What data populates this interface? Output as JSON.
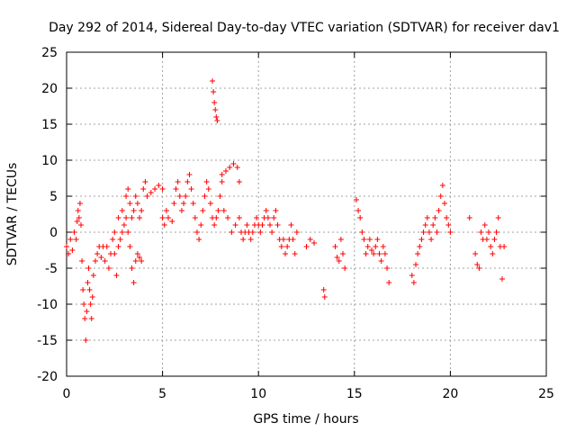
{
  "chart_data": {
    "type": "scatter",
    "title": "Day 292 of 2014, Sidereal Day-to-day VTEC variation (SDTVAR) for receiver dav1",
    "xlabel": "GPS time / hours",
    "ylabel": "SDTVAR / TECUs",
    "xlim": [
      0,
      25
    ],
    "ylim": [
      -20,
      25
    ],
    "xticks": [
      0,
      5,
      10,
      15,
      20,
      25
    ],
    "yticks": [
      -20,
      -15,
      -10,
      -5,
      0,
      5,
      10,
      15,
      20,
      25
    ],
    "grid": true,
    "marker": "+",
    "color": "#ff0000",
    "segments": [
      [
        [
          0.0,
          -2.0
        ],
        [
          0.1,
          -3.0
        ],
        [
          0.2,
          -1.0
        ],
        [
          0.3,
          -2.5
        ],
        [
          0.4,
          0.0
        ],
        [
          0.5,
          -1.0
        ],
        [
          0.55,
          1.5
        ],
        [
          0.6,
          3.0
        ],
        [
          0.65,
          2.0
        ],
        [
          0.7,
          4.0
        ],
        [
          0.75,
          1.0
        ],
        [
          0.8,
          -4.0
        ],
        [
          0.85,
          -8.0
        ],
        [
          0.9,
          -10.0
        ],
        [
          0.95,
          -12.0
        ],
        [
          1.0,
          -15.0
        ],
        [
          1.05,
          -11.0
        ],
        [
          1.1,
          -7.0
        ],
        [
          1.15,
          -5.0
        ],
        [
          1.2,
          -8.0
        ],
        [
          1.25,
          -10.0
        ],
        [
          1.3,
          -12.0
        ],
        [
          1.35,
          -9.0
        ],
        [
          1.4,
          -6.0
        ],
        [
          1.5,
          -4.0
        ],
        [
          1.6,
          -3.0
        ],
        [
          1.7,
          -2.0
        ],
        [
          1.8,
          -3.5
        ],
        [
          1.9,
          -2.0
        ],
        [
          2.0,
          -4.0
        ],
        [
          2.1,
          -2.0
        ],
        [
          2.2,
          -5.0
        ],
        [
          2.3,
          -3.0
        ],
        [
          2.4,
          -1.0
        ],
        [
          2.5,
          -3.0
        ],
        [
          2.6,
          -6.0
        ],
        [
          2.7,
          -2.0
        ],
        [
          2.8,
          -1.0
        ],
        [
          2.9,
          0.0
        ],
        [
          3.0,
          1.0
        ],
        [
          3.1,
          2.0
        ],
        [
          3.2,
          0.0
        ],
        [
          3.3,
          -2.0
        ],
        [
          3.4,
          -5.0
        ],
        [
          3.5,
          -7.0
        ],
        [
          3.6,
          -4.0
        ],
        [
          3.7,
          -3.0
        ],
        [
          3.8,
          -3.5
        ],
        [
          3.9,
          -4.0
        ]
      ],
      [
        [
          2.5,
          0.0
        ],
        [
          2.7,
          2.0
        ],
        [
          2.9,
          3.0
        ],
        [
          3.1,
          5.0
        ],
        [
          3.2,
          6.0
        ],
        [
          3.3,
          4.0
        ],
        [
          3.4,
          2.0
        ],
        [
          3.5,
          3.0
        ],
        [
          3.6,
          5.0
        ],
        [
          3.7,
          4.0
        ],
        [
          3.8,
          2.0
        ],
        [
          3.9,
          3.0
        ],
        [
          4.0,
          6.0
        ],
        [
          4.1,
          7.0
        ],
        [
          4.2,
          5.0
        ],
        [
          4.4,
          5.5
        ],
        [
          4.6,
          6.0
        ],
        [
          4.8,
          6.5
        ],
        [
          5.0,
          6.0
        ]
      ],
      [
        [
          5.0,
          2.0
        ],
        [
          5.1,
          1.0
        ],
        [
          5.2,
          3.0
        ],
        [
          5.3,
          2.0
        ],
        [
          5.5,
          1.5
        ],
        [
          5.6,
          4.0
        ],
        [
          5.7,
          6.0
        ],
        [
          5.8,
          7.0
        ],
        [
          5.9,
          5.0
        ],
        [
          6.0,
          3.0
        ],
        [
          6.1,
          4.0
        ],
        [
          6.2,
          5.0
        ],
        [
          6.3,
          7.0
        ],
        [
          6.4,
          8.0
        ],
        [
          6.5,
          6.0
        ],
        [
          6.6,
          4.0
        ],
        [
          6.7,
          2.0
        ],
        [
          6.8,
          0.0
        ],
        [
          6.9,
          -1.0
        ],
        [
          7.0,
          1.0
        ],
        [
          7.1,
          3.0
        ],
        [
          7.2,
          5.0
        ],
        [
          7.3,
          7.0
        ],
        [
          7.4,
          6.0
        ],
        [
          7.5,
          4.0
        ],
        [
          7.6,
          2.0
        ],
        [
          7.7,
          1.0
        ],
        [
          7.8,
          2.0
        ],
        [
          7.9,
          3.0
        ],
        [
          8.0,
          5.0
        ],
        [
          8.1,
          7.0
        ]
      ],
      [
        [
          7.6,
          21.0
        ],
        [
          7.65,
          19.5
        ],
        [
          7.7,
          18.0
        ],
        [
          7.75,
          17.0
        ],
        [
          7.8,
          16.0
        ],
        [
          7.85,
          15.5
        ]
      ],
      [
        [
          8.1,
          8.0
        ],
        [
          8.3,
          8.5
        ],
        [
          8.5,
          9.0
        ],
        [
          8.7,
          9.5
        ],
        [
          8.9,
          9.0
        ],
        [
          9.0,
          7.0
        ],
        [
          8.2,
          3.0
        ],
        [
          8.4,
          2.0
        ],
        [
          8.6,
          0.0
        ],
        [
          8.8,
          1.0
        ],
        [
          9.0,
          2.0
        ],
        [
          9.1,
          0.0
        ],
        [
          9.2,
          -1.0
        ],
        [
          9.3,
          0.0
        ],
        [
          9.4,
          1.0
        ],
        [
          9.5,
          0.0
        ],
        [
          9.6,
          -1.0
        ],
        [
          9.7,
          0.0
        ],
        [
          9.8,
          1.0
        ],
        [
          9.9,
          2.0
        ],
        [
          10.0,
          1.0
        ],
        [
          10.1,
          0.0
        ],
        [
          10.2,
          1.0
        ],
        [
          10.3,
          2.0
        ],
        [
          10.4,
          3.0
        ],
        [
          10.5,
          2.0
        ],
        [
          10.6,
          1.0
        ],
        [
          10.7,
          0.0
        ],
        [
          10.8,
          2.0
        ],
        [
          10.9,
          3.0
        ],
        [
          11.0,
          1.0
        ],
        [
          11.1,
          -1.0
        ],
        [
          11.2,
          -2.0
        ],
        [
          11.3,
          -1.0
        ],
        [
          11.4,
          -3.0
        ],
        [
          11.5,
          -2.0
        ],
        [
          11.6,
          -1.0
        ],
        [
          11.7,
          1.0
        ],
        [
          11.8,
          -1.0
        ],
        [
          11.9,
          -3.0
        ],
        [
          12.0,
          0.0
        ]
      ],
      [
        [
          12.5,
          -2.0
        ],
        [
          12.7,
          -1.0
        ],
        [
          12.9,
          -1.5
        ],
        [
          13.4,
          -8.0
        ],
        [
          13.45,
          -9.0
        ],
        [
          14.0,
          -2.0
        ],
        [
          14.1,
          -3.5
        ],
        [
          14.2,
          -4.0
        ],
        [
          14.3,
          -1.0
        ],
        [
          14.4,
          -3.0
        ],
        [
          14.5,
          -5.0
        ]
      ],
      [
        [
          15.1,
          4.5
        ],
        [
          15.2,
          3.0
        ],
        [
          15.3,
          2.0
        ],
        [
          15.4,
          0.0
        ],
        [
          15.5,
          -1.0
        ],
        [
          15.6,
          -3.0
        ],
        [
          15.7,
          -2.0
        ],
        [
          15.8,
          -1.0
        ],
        [
          15.9,
          -2.5
        ],
        [
          16.0,
          -3.0
        ],
        [
          16.1,
          -2.0
        ],
        [
          16.2,
          -1.0
        ],
        [
          16.3,
          -3.0
        ],
        [
          16.4,
          -4.0
        ],
        [
          16.5,
          -2.0
        ],
        [
          16.6,
          -3.0
        ],
        [
          16.7,
          -5.0
        ],
        [
          16.8,
          -7.0
        ]
      ],
      [
        [
          18.0,
          -6.0
        ],
        [
          18.1,
          -7.0
        ],
        [
          18.2,
          -4.5
        ],
        [
          18.3,
          -3.0
        ],
        [
          18.4,
          -2.0
        ],
        [
          18.5,
          -1.0
        ],
        [
          18.6,
          0.0
        ],
        [
          18.7,
          1.0
        ],
        [
          18.8,
          2.0
        ],
        [
          18.9,
          0.0
        ],
        [
          19.0,
          -1.0
        ],
        [
          19.1,
          1.0
        ],
        [
          19.2,
          2.0
        ],
        [
          19.3,
          0.0
        ],
        [
          19.4,
          3.0
        ],
        [
          19.5,
          5.0
        ],
        [
          19.6,
          6.5
        ],
        [
          19.7,
          4.0
        ],
        [
          19.8,
          2.0
        ],
        [
          19.9,
          1.0
        ],
        [
          20.0,
          0.0
        ]
      ],
      [
        [
          21.3,
          -3.0
        ],
        [
          21.4,
          -4.5
        ],
        [
          21.5,
          -5.0
        ],
        [
          21.6,
          0.0
        ],
        [
          21.7,
          -1.0
        ],
        [
          21.8,
          1.0
        ],
        [
          21.9,
          -1.0
        ],
        [
          22.0,
          0.0
        ],
        [
          22.1,
          -2.0
        ],
        [
          22.2,
          -3.0
        ],
        [
          22.3,
          -1.0
        ],
        [
          22.4,
          0.0
        ],
        [
          22.5,
          2.0
        ],
        [
          22.6,
          -2.0
        ],
        [
          22.7,
          -6.5
        ],
        [
          22.8,
          -2.0
        ],
        [
          21.0,
          2.0
        ]
      ]
    ]
  }
}
